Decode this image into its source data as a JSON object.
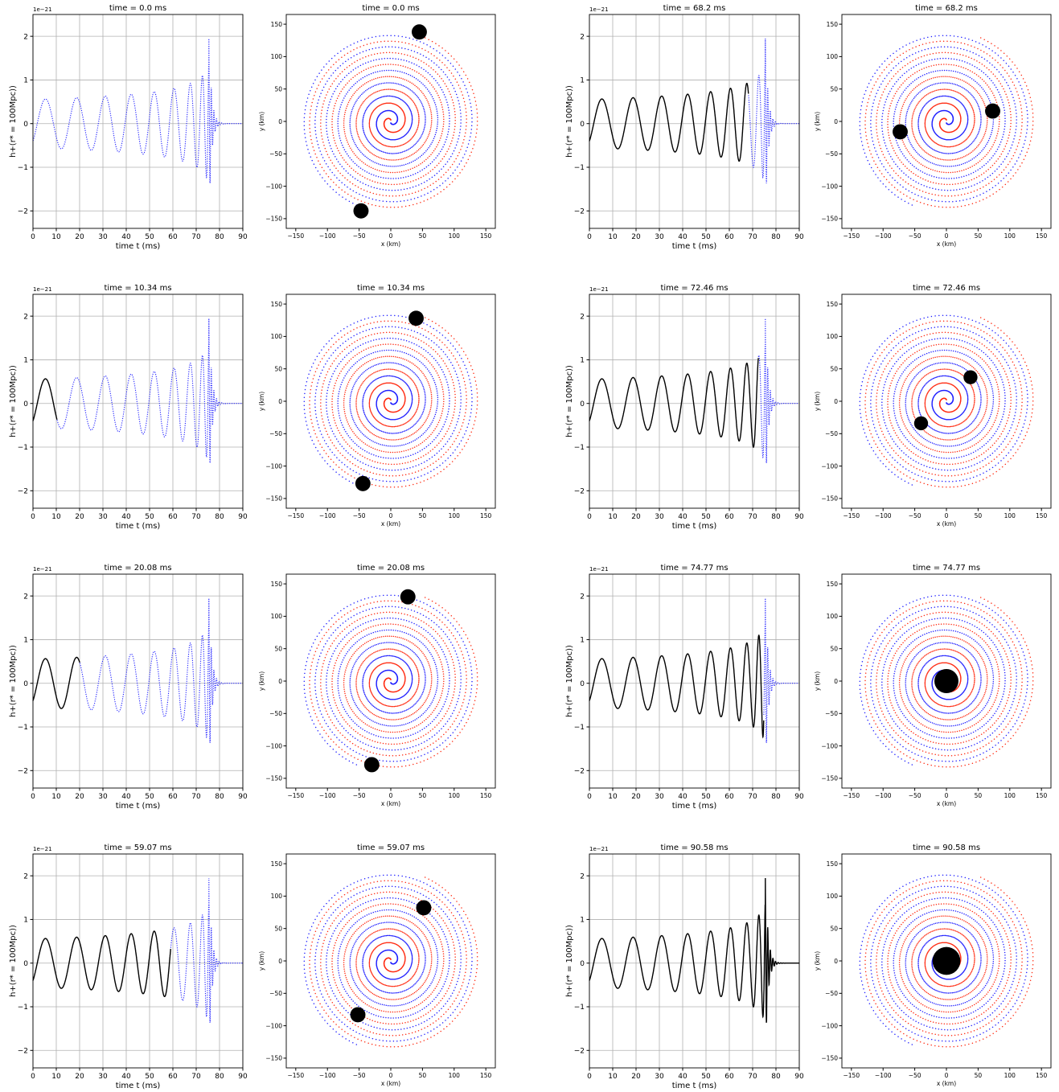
{
  "figure": {
    "wave_xlabel": "time t (ms)",
    "wave_ylabel": "h+(r* = 100Mpc))",
    "wave_ylabel_variant": "h+(r* = 100Mpc)",
    "orbit_xlabel": "x (km)",
    "orbit_ylabel": "y (km)",
    "wave_offset_text": "1e−21",
    "title_prefix": "time = ",
    "title_unit": " ms"
  },
  "chart_data": [
    {
      "type": "line",
      "panel": "waveform",
      "title": "time = 0.0 ms",
      "time_ms": 0.0,
      "xlabel": "time t (ms)",
      "ylabel": "h+(r* = 100Mpc))",
      "xlim": [
        0,
        90
      ],
      "ylim": [
        -2.4,
        2.5
      ],
      "y_offset": "1e−21",
      "xticks": [
        0,
        10,
        20,
        30,
        40,
        50,
        60,
        70,
        80,
        90
      ],
      "yticks": [
        -2,
        -1,
        0,
        1,
        2
      ],
      "grid": true,
      "series": [
        {
          "style": "solid",
          "color": "#000000"
        },
        {
          "style": "dotted",
          "color": "#1f1fff"
        }
      ]
    },
    {
      "type": "scatter",
      "panel": "orbit",
      "title": "time = 0.0 ms",
      "time_ms": 0.0,
      "xlabel": "x (km)",
      "ylabel": "y (km)",
      "xlim": [
        -165,
        165
      ],
      "ylim": [
        -165,
        165
      ],
      "xticks": [
        -150,
        -100,
        -50,
        0,
        50,
        100,
        150
      ],
      "yticks": [
        -150,
        -100,
        -50,
        0,
        50,
        100,
        150
      ],
      "series": [
        {
          "color": "#ff2a10"
        },
        {
          "color": "#1f1fff"
        }
      ],
      "bodies": [
        {
          "x": 45,
          "y": 138,
          "r": 12
        },
        {
          "x": -47,
          "y": -138,
          "r": 12
        }
      ]
    },
    {
      "type": "line",
      "panel": "waveform",
      "title": "time = 68.2 ms",
      "time_ms": 68.2,
      "xlabel": "time t (ms)",
      "ylabel": "h+(r* = 100Mpc))",
      "xlim": [
        0,
        90
      ],
      "ylim": [
        -2.4,
        2.5
      ],
      "y_offset": "1e−21",
      "xticks": [
        0,
        10,
        20,
        30,
        40,
        50,
        60,
        70,
        80,
        90
      ],
      "yticks": [
        -2,
        -1,
        0,
        1,
        2
      ],
      "grid": true,
      "series": [
        {
          "style": "solid",
          "color": "#000000"
        },
        {
          "style": "dotted",
          "color": "#1f1fff"
        }
      ]
    },
    {
      "type": "scatter",
      "panel": "orbit",
      "title": "time = 68.2 ms",
      "time_ms": 68.2,
      "xlabel": "x (km)",
      "ylabel": "y (km)",
      "xlim": [
        -165,
        165
      ],
      "ylim": [
        -165,
        165
      ],
      "xticks": [
        -150,
        -100,
        -50,
        0,
        50,
        100,
        150
      ],
      "yticks": [
        -150,
        -100,
        -50,
        0,
        50,
        100,
        150
      ],
      "series": [
        {
          "color": "#ff2a10"
        },
        {
          "color": "#1f1fff"
        }
      ],
      "bodies": [
        {
          "x": 73,
          "y": 16,
          "r": 12
        },
        {
          "x": -73,
          "y": -16,
          "r": 12
        }
      ]
    },
    {
      "type": "line",
      "panel": "waveform",
      "title": "time = 10.34 ms",
      "time_ms": 10.34,
      "xlabel": "time t (ms)",
      "ylabel": "h+(r* = 100Mpc))",
      "xlim": [
        0,
        90
      ],
      "ylim": [
        -2.4,
        2.5
      ],
      "y_offset": "1e−21",
      "xticks": [
        0,
        10,
        20,
        30,
        40,
        50,
        60,
        70,
        80,
        90
      ],
      "yticks": [
        -2,
        -1,
        0,
        1,
        2
      ],
      "grid": true,
      "series": [
        {
          "style": "solid",
          "color": "#000000"
        },
        {
          "style": "dotted",
          "color": "#1f1fff"
        }
      ]
    },
    {
      "type": "scatter",
      "panel": "orbit",
      "title": "time = 10.34 ms",
      "time_ms": 10.34,
      "xlabel": "x (km)",
      "ylabel": "y (km)",
      "xlim": [
        -165,
        165
      ],
      "ylim": [
        -165,
        165
      ],
      "xticks": [
        -150,
        -100,
        -50,
        0,
        50,
        100,
        150
      ],
      "yticks": [
        -150,
        -100,
        -50,
        0,
        50,
        100,
        150
      ],
      "series": [
        {
          "color": "#ff2a10"
        },
        {
          "color": "#1f1fff"
        }
      ],
      "bodies": [
        {
          "x": 40,
          "y": 128,
          "r": 12
        },
        {
          "x": -44,
          "y": -127,
          "r": 12
        }
      ]
    },
    {
      "type": "line",
      "panel": "waveform",
      "title": "time = 72.46 ms",
      "time_ms": 72.46,
      "xlabel": "time t (ms)",
      "ylabel": "h+(r* = 100Mpc))",
      "xlim": [
        0,
        90
      ],
      "ylim": [
        -2.4,
        2.5
      ],
      "y_offset": "1e−21",
      "xticks": [
        0,
        10,
        20,
        30,
        40,
        50,
        60,
        70,
        80,
        90
      ],
      "yticks": [
        -2,
        -1,
        0,
        1,
        2
      ],
      "grid": true,
      "series": [
        {
          "style": "solid",
          "color": "#000000"
        },
        {
          "style": "dotted",
          "color": "#1f1fff"
        }
      ]
    },
    {
      "type": "scatter",
      "panel": "orbit",
      "title": "time = 72.46 ms",
      "time_ms": 72.46,
      "xlabel": "x (km)",
      "ylabel": "y (km)",
      "xlim": [
        -165,
        165
      ],
      "ylim": [
        -165,
        165
      ],
      "xticks": [
        -150,
        -100,
        -50,
        0,
        50,
        100,
        150
      ],
      "yticks": [
        -150,
        -100,
        -50,
        0,
        50,
        100,
        150
      ],
      "series": [
        {
          "color": "#ff2a10"
        },
        {
          "color": "#1f1fff"
        }
      ],
      "bodies": [
        {
          "x": 38,
          "y": 37,
          "r": 11
        },
        {
          "x": -40,
          "y": -34,
          "r": 11
        }
      ]
    },
    {
      "type": "line",
      "panel": "waveform",
      "title": "time = 20.08 ms",
      "time_ms": 20.08,
      "xlabel": "time t (ms)",
      "ylabel": "h+(r* = 100Mpc))",
      "xlim": [
        0,
        90
      ],
      "ylim": [
        -2.4,
        2.5
      ],
      "y_offset": "1e−21",
      "xticks": [
        0,
        10,
        20,
        30,
        40,
        50,
        60,
        70,
        80,
        90
      ],
      "yticks": [
        -2,
        -1,
        0,
        1,
        2
      ],
      "grid": true,
      "series": [
        {
          "style": "solid",
          "color": "#000000"
        },
        {
          "style": "dotted",
          "color": "#1f1fff"
        }
      ]
    },
    {
      "type": "scatter",
      "panel": "orbit",
      "title": "time = 20.08 ms",
      "time_ms": 20.08,
      "xlabel": "x (km)",
      "ylabel": "y (km)",
      "xlim": [
        -165,
        165
      ],
      "ylim": [
        -165,
        165
      ],
      "xticks": [
        -150,
        -100,
        -50,
        0,
        50,
        100,
        150
      ],
      "yticks": [
        -150,
        -100,
        -50,
        0,
        50,
        100,
        150
      ],
      "series": [
        {
          "color": "#ff2a10"
        },
        {
          "color": "#1f1fff"
        }
      ],
      "bodies": [
        {
          "x": 27,
          "y": 130,
          "r": 12
        },
        {
          "x": -30,
          "y": -129,
          "r": 12
        }
      ]
    },
    {
      "type": "line",
      "panel": "waveform",
      "title": "time = 74.77 ms",
      "time_ms": 74.77,
      "xlabel": "time t (ms)",
      "ylabel": "h+(r* = 100Mpc))",
      "xlim": [
        0,
        90
      ],
      "ylim": [
        -2.4,
        2.5
      ],
      "y_offset": "1e−21",
      "xticks": [
        0,
        10,
        20,
        30,
        40,
        50,
        60,
        70,
        80,
        90
      ],
      "yticks": [
        -2,
        -1,
        0,
        1,
        2
      ],
      "grid": true,
      "series": [
        {
          "style": "solid",
          "color": "#000000"
        },
        {
          "style": "dotted",
          "color": "#1f1fff"
        }
      ]
    },
    {
      "type": "scatter",
      "panel": "orbit",
      "title": "time = 74.77 ms",
      "time_ms": 74.77,
      "xlabel": "x (km)",
      "ylabel": "y (km)",
      "xlim": [
        -165,
        165
      ],
      "ylim": [
        -165,
        165
      ],
      "xticks": [
        -150,
        -100,
        -50,
        0,
        50,
        100,
        150
      ],
      "yticks": [
        -150,
        -100,
        -50,
        0,
        50,
        100,
        150
      ],
      "series": [
        {
          "color": "#ff2a10"
        },
        {
          "color": "#1f1fff"
        }
      ],
      "bodies": [
        {
          "x": 0,
          "y": 0,
          "r": 19
        }
      ]
    },
    {
      "type": "line",
      "panel": "waveform",
      "title": "time = 59.07 ms",
      "time_ms": 59.07,
      "xlabel": "time t (ms)",
      "ylabel": "h+(r* = 100Mpc))",
      "xlim": [
        0,
        90
      ],
      "ylim": [
        -2.4,
        2.5
      ],
      "y_offset": "1e−21",
      "xticks": [
        0,
        10,
        20,
        30,
        40,
        50,
        60,
        70,
        80,
        90
      ],
      "yticks": [
        -2,
        -1,
        0,
        1,
        2
      ],
      "grid": true,
      "series": [
        {
          "style": "solid",
          "color": "#000000"
        },
        {
          "style": "dotted",
          "color": "#1f1fff"
        }
      ]
    },
    {
      "type": "scatter",
      "panel": "orbit",
      "title": "time = 59.07 ms",
      "time_ms": 59.07,
      "xlabel": "x (km)",
      "ylabel": "y (km)",
      "xlim": [
        -165,
        165
      ],
      "ylim": [
        -165,
        165
      ],
      "xticks": [
        -150,
        -100,
        -50,
        0,
        50,
        100,
        150
      ],
      "yticks": [
        -150,
        -100,
        -50,
        0,
        50,
        100,
        150
      ],
      "series": [
        {
          "color": "#ff2a10"
        },
        {
          "color": "#1f1fff"
        }
      ],
      "bodies": [
        {
          "x": 52,
          "y": 82,
          "r": 12
        },
        {
          "x": -52,
          "y": -83,
          "r": 12
        }
      ]
    },
    {
      "type": "line",
      "panel": "waveform",
      "title": "time = 90.58 ms",
      "time_ms": 90.58,
      "xlabel": "time t (ms)",
      "ylabel": "h+(r* = 100Mpc))",
      "xlim": [
        0,
        90
      ],
      "ylim": [
        -2.4,
        2.5
      ],
      "y_offset": "1e−21",
      "xticks": [
        0,
        10,
        20,
        30,
        40,
        50,
        60,
        70,
        80,
        90
      ],
      "yticks": [
        -2,
        -1,
        0,
        1,
        2
      ],
      "grid": true,
      "series": [
        {
          "style": "solid",
          "color": "#000000"
        },
        {
          "style": "dotted",
          "color": "#1f1fff"
        }
      ]
    },
    {
      "type": "scatter",
      "panel": "orbit",
      "title": "time = 90.58 ms",
      "time_ms": 90.58,
      "xlabel": "x (km)",
      "ylabel": "y (km)",
      "xlim": [
        -165,
        165
      ],
      "ylim": [
        -165,
        165
      ],
      "xticks": [
        -150,
        -100,
        -50,
        0,
        50,
        100,
        150
      ],
      "yticks": [
        -150,
        -100,
        -50,
        0,
        50,
        100,
        150
      ],
      "series": [
        {
          "color": "#ff2a10"
        },
        {
          "color": "#1f1fff"
        }
      ],
      "bodies": [
        {
          "x": 0,
          "y": 0,
          "r": 22
        }
      ]
    }
  ]
}
